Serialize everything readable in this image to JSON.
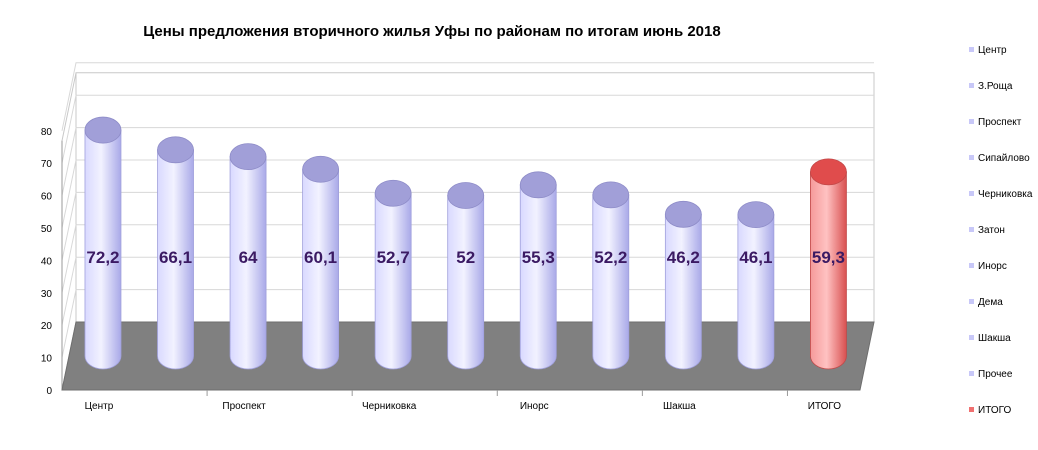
{
  "chart_data": {
    "type": "bar",
    "style": "3d-cylinder",
    "title": "Цены предложения вторичного жилья Уфы по районам по итогам июнь 2018",
    "xlabel": "",
    "ylabel": "",
    "ylim": [
      0,
      80
    ],
    "yticks": [
      "0",
      "10",
      "20",
      "30",
      "40",
      "50",
      "60",
      "70",
      "80"
    ],
    "categories": [
      "Центр",
      "З.Роща",
      "Проспект",
      "Сипайлово",
      "Черниковка",
      "Затон",
      "Инорс",
      "Дема",
      "Шакша",
      "Прочее",
      "ИТОГО"
    ],
    "visible_category_labels": [
      "Центр",
      "",
      "Проспект",
      "",
      "Черниковка",
      "",
      "Инорс",
      "",
      "Шакша",
      "",
      "ИТОГО"
    ],
    "values": [
      72.2,
      66.1,
      64,
      60.1,
      52.7,
      52,
      55.3,
      52.2,
      46.2,
      46.1,
      59.3
    ],
    "value_labels": [
      "72,2",
      "66,1",
      "64",
      "60,1",
      "52,7",
      "52",
      "55,3",
      "52,2",
      "46,2",
      "46,1",
      "59,3"
    ],
    "bar_colors": [
      "#c8c8f8",
      "#c8c8f8",
      "#c8c8f8",
      "#c8c8f8",
      "#c8c8f8",
      "#c8c8f8",
      "#c8c8f8",
      "#c8c8f8",
      "#c8c8f8",
      "#c8c8f8",
      "#f07070"
    ],
    "legend": {
      "position": "right",
      "entries": [
        "Центр",
        "З.Роща",
        "Проспект",
        "Сипайлово",
        "Черниковка",
        "Затон",
        "Инорс",
        "Дема",
        "Шакша",
        "Прочее",
        "ИТОГО"
      ],
      "colors": [
        "#c8c8f8",
        "#c8c8f8",
        "#c8c8f8",
        "#c8c8f8",
        "#c8c8f8",
        "#c8c8f8",
        "#c8c8f8",
        "#c8c8f8",
        "#c8c8f8",
        "#c8c8f8",
        "#f07070"
      ]
    },
    "grid": true,
    "floor_color": "#808080"
  }
}
